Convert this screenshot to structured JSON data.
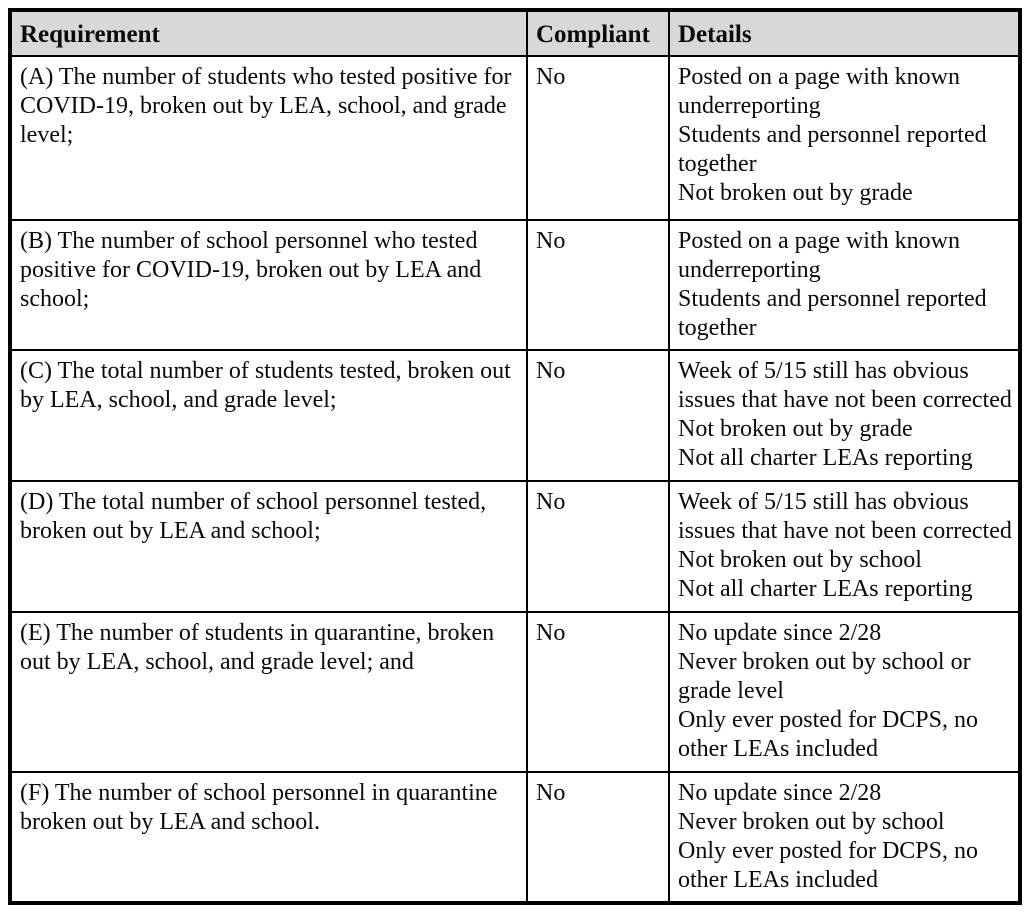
{
  "page": {
    "background": "#ffffff",
    "text_color": "#000000"
  },
  "table": {
    "header_bg": "#d8d8d8",
    "border_color": "#000000",
    "columns": [
      "Requirement",
      "Compliant",
      "Details"
    ],
    "rows": [
      {
        "id": "A",
        "requirement": "(A) The number of students who tested positive for COVID-19, broken out by LEA, school, and grade level;",
        "compliant": "No",
        "details": [
          "Posted on a page with known underreporting",
          "Students and personnel reported together",
          "Not broken out by grade"
        ]
      },
      {
        "id": "B",
        "requirement": "(B) The number of school personnel who tested positive for COVID-19, broken out by LEA and school;",
        "compliant": "No",
        "details": [
          "Posted on a page with known underreporting",
          "Students and personnel reported together"
        ]
      },
      {
        "id": "C",
        "requirement": "(C) The total number of students tested, broken out by LEA, school, and grade level;",
        "compliant": "No",
        "details": [
          "Week of 5/15 still has obvious issues that have not been corrected",
          "Not broken out by grade",
          "Not all charter LEAs reporting"
        ]
      },
      {
        "id": "D",
        "requirement": "(D) The total number of school personnel tested, broken out by LEA and school;",
        "compliant": "No",
        "details": [
          "Week of 5/15 still has obvious issues that have not been corrected",
          "Not broken out by school",
          "Not all charter LEAs reporting"
        ]
      },
      {
        "id": "E",
        "requirement": "(E) The number of students in quarantine, broken out by LEA, school, and grade level; and",
        "compliant": "No",
        "details": [
          "No update since 2/28",
          "Never broken out by school or grade level",
          "Only ever posted for DCPS, no other LEAs included"
        ]
      },
      {
        "id": "F",
        "requirement": "(F) The number of school personnel in quarantine broken out by LEA and school.",
        "compliant": "No",
        "details": [
          "No update since 2/28",
          "Never broken out by school",
          "Only ever posted for DCPS, no other LEAs included"
        ]
      }
    ]
  }
}
